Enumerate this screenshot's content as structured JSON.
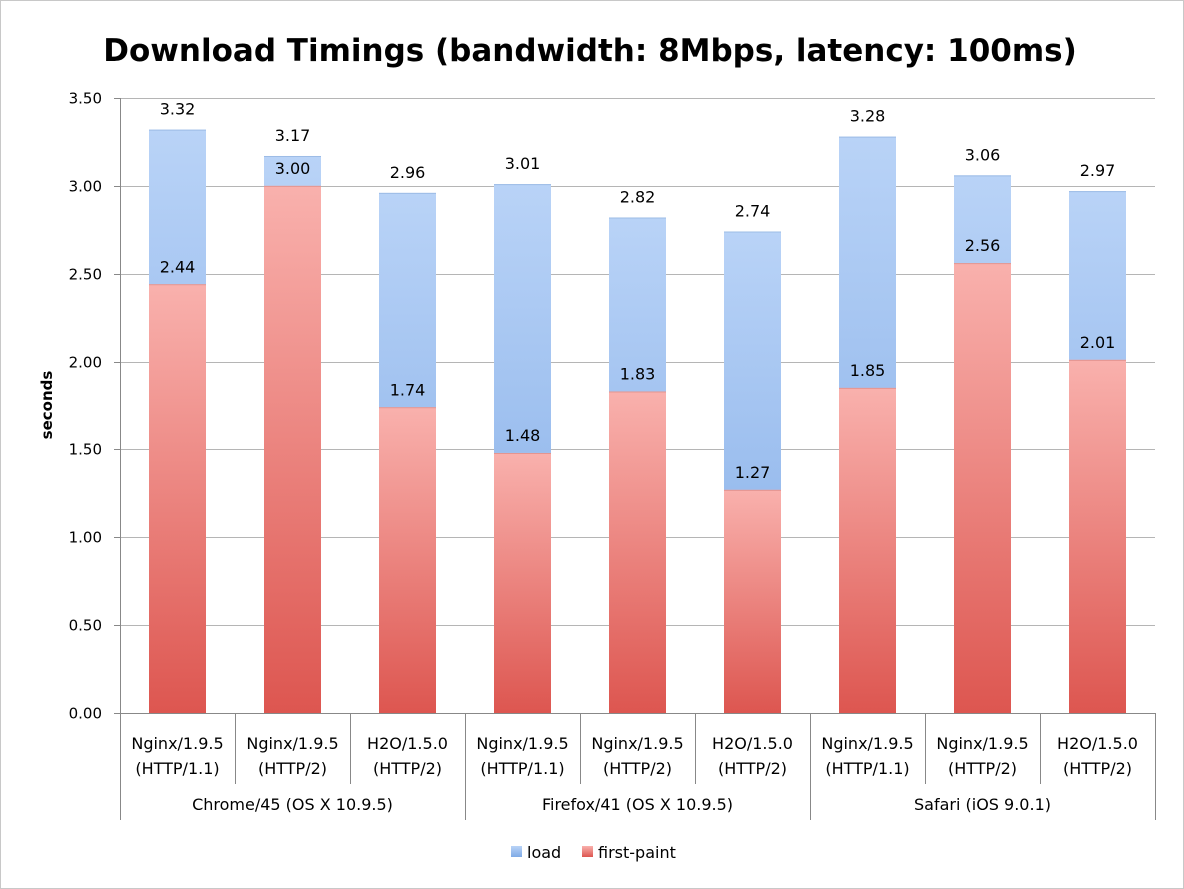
{
  "chart_data": {
    "type": "bar",
    "stacking": "overlay",
    "title": "Download Timings (bandwidth: 8Mbps, latency: 100ms)",
    "ylabel": "seconds",
    "xlabel": "",
    "ylim": [
      0,
      3.5
    ],
    "yticks": [
      "0.00",
      "0.50",
      "1.00",
      "1.50",
      "2.00",
      "2.50",
      "3.00",
      "3.50"
    ],
    "grid": true,
    "legend_position": "bottom",
    "categories": [
      [
        "Nginx/1.9.5",
        "(HTTP/1.1)"
      ],
      [
        "Nginx/1.9.5",
        "(HTTP/2)"
      ],
      [
        "H2O/1.5.0",
        "(HTTP/2)"
      ],
      [
        "Nginx/1.9.5",
        "(HTTP/1.1)"
      ],
      [
        "Nginx/1.9.5",
        "(HTTP/2)"
      ],
      [
        "H2O/1.5.0",
        "(HTTP/2)"
      ],
      [
        "Nginx/1.9.5",
        "(HTTP/1.1)"
      ],
      [
        "Nginx/1.9.5",
        "(HTTP/2)"
      ],
      [
        "H2O/1.5.0",
        "(HTTP/2)"
      ]
    ],
    "groups": [
      {
        "label": "Chrome/45 (OS X 10.9.5)",
        "count": 3
      },
      {
        "label": "Firefox/41 (OS X 10.9.5)",
        "count": 3
      },
      {
        "label": "Safari (iOS 9.0.1)",
        "count": 3
      }
    ],
    "series": [
      {
        "name": "load",
        "color": "#8fb6ea",
        "values": [
          3.32,
          3.17,
          2.96,
          3.01,
          2.82,
          2.74,
          3.28,
          3.06,
          2.97
        ],
        "labels": [
          "3.32",
          "3.17",
          "2.96",
          "3.01",
          "2.82",
          "2.74",
          "3.28",
          "3.06",
          "2.97"
        ]
      },
      {
        "name": "first-paint",
        "color": "#ee8a86",
        "values": [
          2.44,
          3.0,
          1.74,
          1.48,
          1.83,
          1.27,
          1.85,
          2.56,
          2.01
        ],
        "labels": [
          "2.44",
          "3.00",
          "1.74",
          "1.48",
          "1.83",
          "1.27",
          "1.85",
          "2.56",
          "2.01"
        ]
      }
    ]
  }
}
